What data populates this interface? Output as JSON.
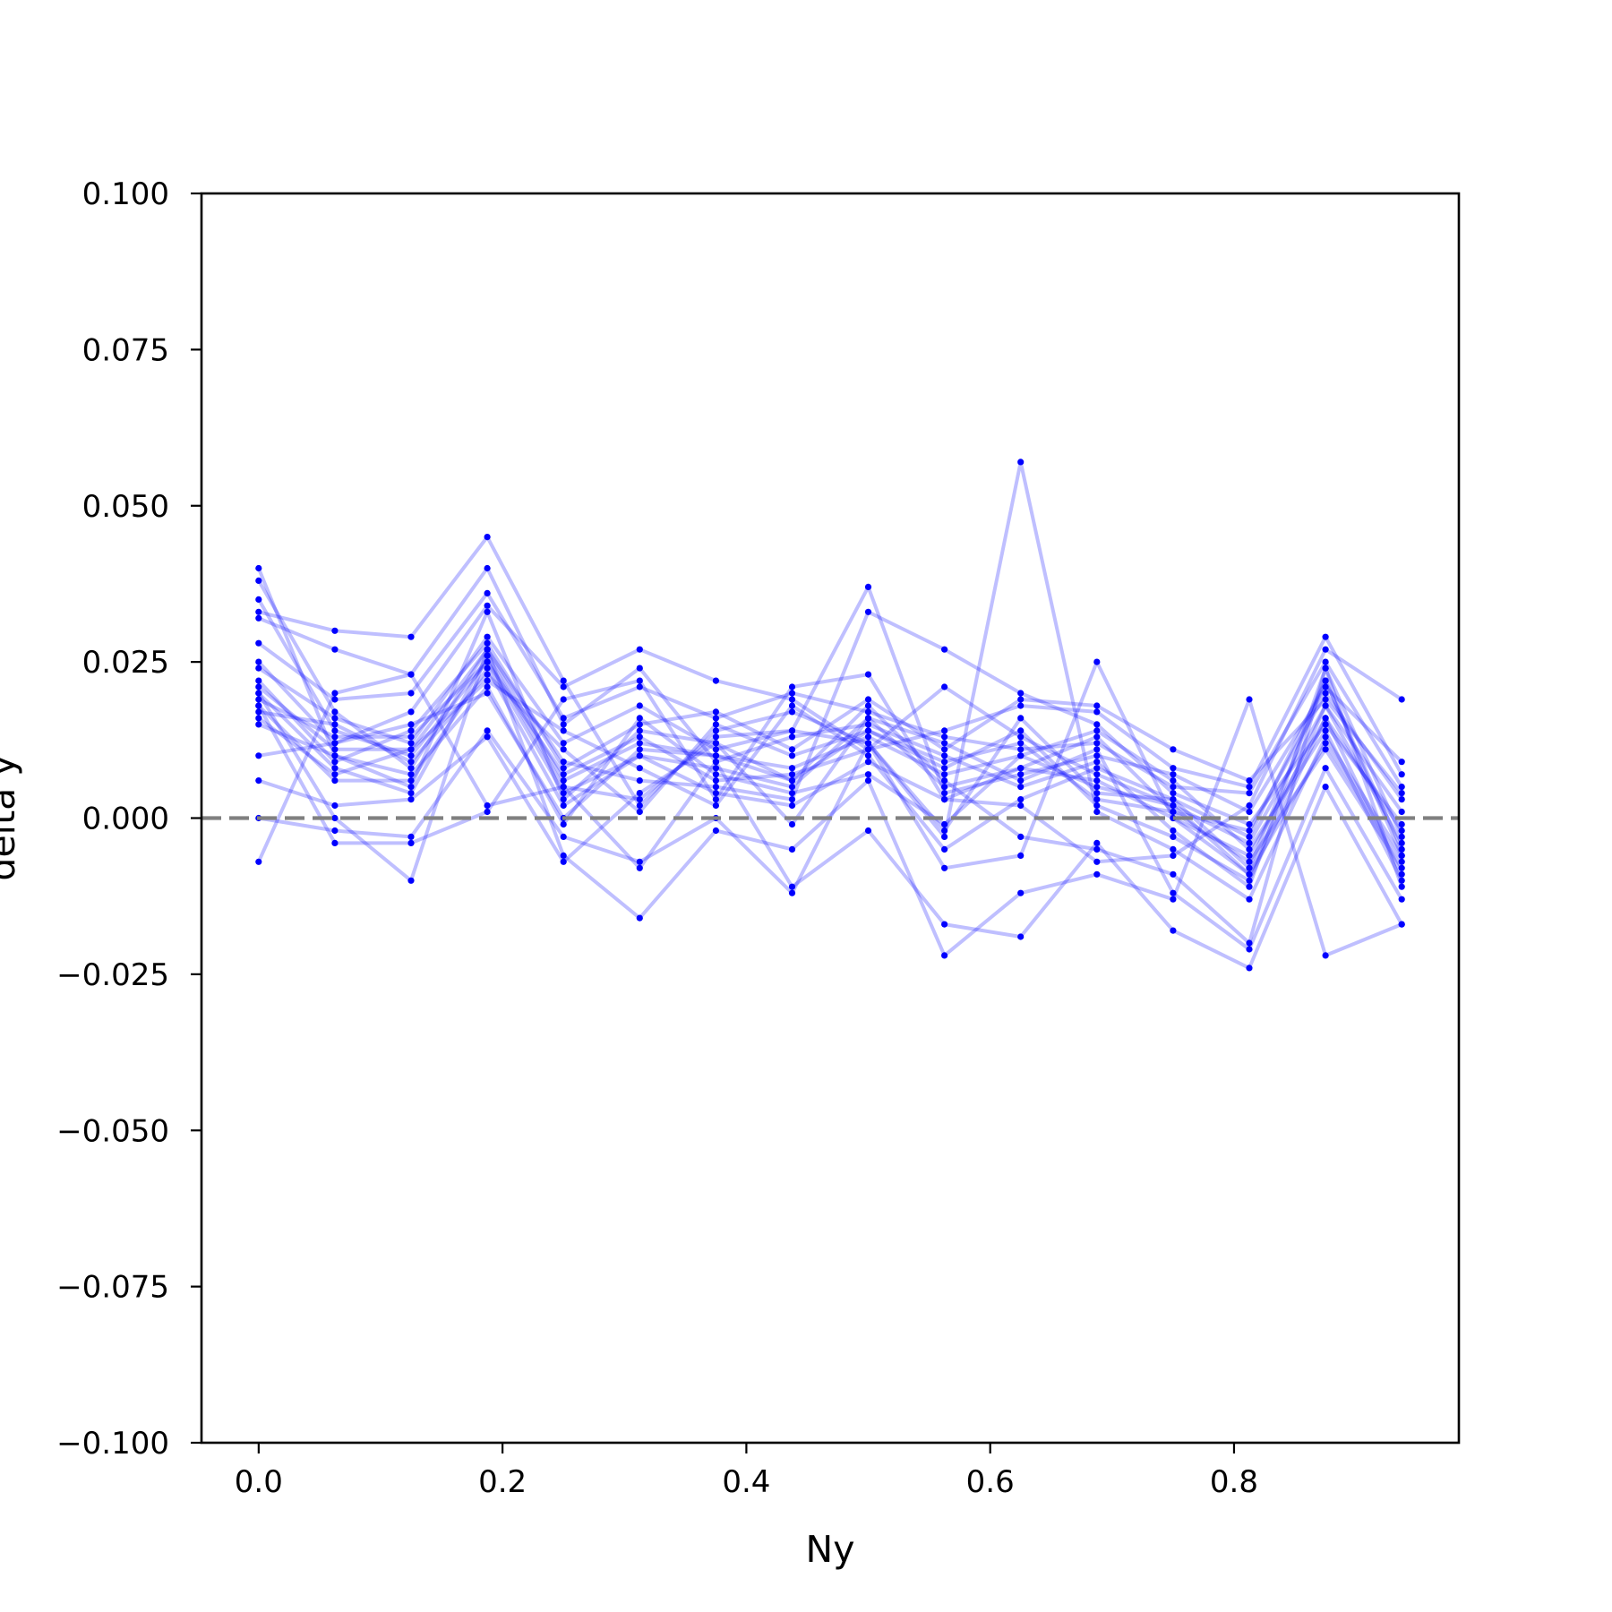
{
  "chart_data": {
    "type": "line",
    "title": "",
    "xlabel": "Ny",
    "ylabel": "delta y",
    "xlim": [
      -0.0469,
      0.9844
    ],
    "ylim": [
      -0.1,
      0.1
    ],
    "grid": false,
    "x": [
      0.0,
      0.0625,
      0.125,
      0.1875,
      0.25,
      0.3125,
      0.375,
      0.4375,
      0.5,
      0.5625,
      0.625,
      0.6875,
      0.75,
      0.8125,
      0.875,
      0.9375
    ],
    "xticks": [
      "0.0",
      "0.2",
      "0.4",
      "0.6",
      "0.8"
    ],
    "yticks": [
      "0.100",
      "0.075",
      "0.050",
      "0.025",
      "0.000",
      "−0.025",
      "−0.050",
      "−0.075",
      "−0.100"
    ],
    "line_color": "#0000ff",
    "reference_line": {
      "y": 0.0,
      "style": "dashed",
      "color": "#808080"
    },
    "series": [
      {
        "values": [
          0.04,
          0.01,
          0.005,
          0.033,
          0.003,
          0.014,
          0.012,
          0.006,
          0.014,
          0.009,
          0.012,
          0.003,
          0.001,
          -0.002,
          0.02,
          0.003
        ]
      },
      {
        "values": [
          0.038,
          0.017,
          0.008,
          0.027,
          0.006,
          0.012,
          0.01,
          0.008,
          0.013,
          0.007,
          0.01,
          0.005,
          0.002,
          -0.004,
          0.018,
          0.001
        ]
      },
      {
        "values": [
          0.035,
          0.014,
          0.01,
          0.025,
          0.004,
          0.01,
          0.008,
          0.005,
          0.016,
          0.005,
          0.008,
          0.006,
          0.0,
          -0.006,
          0.016,
          -0.002
        ]
      },
      {
        "values": [
          0.033,
          0.03,
          0.029,
          0.045,
          0.022,
          0.002,
          0.014,
          0.017,
          0.012,
          -0.002,
          0.016,
          0.004,
          0.003,
          -0.008,
          0.022,
          -0.005
        ]
      },
      {
        "values": [
          0.032,
          0.027,
          0.023,
          0.04,
          0.015,
          0.024,
          0.009,
          0.013,
          0.015,
          0.01,
          0.005,
          0.009,
          -0.002,
          -0.011,
          0.024,
          -0.003
        ]
      },
      {
        "values": [
          0.028,
          0.019,
          0.02,
          0.036,
          0.016,
          0.021,
          0.016,
          0.02,
          0.017,
          0.013,
          0.011,
          0.012,
          0.005,
          0.004,
          0.025,
          0.005
        ]
      },
      {
        "values": [
          0.025,
          0.012,
          0.017,
          0.034,
          0.021,
          0.027,
          0.022,
          0.019,
          0.011,
          0.014,
          0.018,
          0.017,
          0.008,
          0.005,
          0.029,
          0.007
        ]
      },
      {
        "values": [
          0.024,
          0.016,
          0.012,
          0.029,
          0.012,
          0.018,
          0.011,
          0.014,
          0.037,
          0.004,
          0.007,
          0.01,
          0.007,
          0.001,
          0.021,
          0.009
        ]
      },
      {
        "values": [
          0.022,
          0.009,
          0.014,
          0.028,
          0.008,
          0.015,
          0.017,
          0.011,
          0.019,
          0.011,
          0.019,
          0.018,
          0.011,
          0.006,
          0.019,
          0.004
        ]
      },
      {
        "values": [
          0.021,
          0.011,
          0.011,
          0.027,
          0.009,
          0.006,
          0.005,
          0.003,
          0.033,
          0.027,
          0.02,
          0.015,
          0.004,
          -0.001,
          0.015,
          -0.001
        ]
      },
      {
        "values": [
          0.02,
          0.008,
          0.004,
          0.026,
          0.005,
          0.003,
          0.013,
          0.014,
          0.012,
          -0.003,
          0.057,
          0.001,
          -0.005,
          -0.013,
          0.013,
          -0.006
        ]
      },
      {
        "values": [
          0.019,
          0.013,
          0.013,
          0.025,
          0.007,
          0.013,
          0.006,
          0.007,
          0.011,
          0.021,
          0.013,
          0.007,
          0.002,
          -0.009,
          0.018,
          -0.004
        ]
      },
      {
        "values": [
          0.018,
          0.006,
          0.006,
          0.024,
          0.002,
          0.01,
          0.004,
          0.002,
          0.009,
          0.003,
          0.008,
          0.013,
          0.001,
          -0.007,
          0.011,
          -0.008
        ]
      },
      {
        "values": [
          0.017,
          0.015,
          0.009,
          0.023,
          0.011,
          0.001,
          0.015,
          0.01,
          0.014,
          0.008,
          0.014,
          0.002,
          -0.003,
          -0.01,
          0.016,
          -0.009
        ]
      },
      {
        "values": [
          0.016,
          0.007,
          0.011,
          0.022,
          0.014,
          0.008,
          0.002,
          0.018,
          0.01,
          -0.005,
          0.003,
          0.008,
          0.003,
          -0.003,
          0.022,
          -0.006
        ]
      },
      {
        "values": [
          0.015,
          0.01,
          0.007,
          0.021,
          -0.001,
          0.016,
          0.007,
          0.004,
          0.007,
          -0.001,
          0.01,
          0.014,
          0.006,
          -0.005,
          0.014,
          -0.01
        ]
      },
      {
        "values": [
          0.01,
          0.012,
          0.015,
          0.02,
          0.0,
          0.011,
          0.01,
          0.006,
          0.018,
          0.006,
          -0.003,
          -0.005,
          -0.009,
          -0.02,
          0.024,
          -0.011
        ]
      },
      {
        "values": [
          0.006,
          0.002,
          0.003,
          0.013,
          -0.007,
          0.004,
          0.012,
          -0.001,
          0.016,
          0.012,
          0.006,
          0.011,
          -0.012,
          -0.021,
          0.008,
          -0.013
        ]
      },
      {
        "values": [
          0.0,
          -0.002,
          -0.003,
          0.014,
          -0.003,
          -0.007,
          0.0,
          -0.012,
          0.012,
          -0.008,
          -0.006,
          0.025,
          0.0,
          -0.009,
          0.012,
          -0.007
        ]
      },
      {
        "values": [
          -0.007,
          0.02,
          0.023,
          0.002,
          0.005,
          -0.008,
          0.009,
          -0.011,
          -0.002,
          -0.017,
          -0.019,
          -0.004,
          -0.018,
          -0.024,
          0.005,
          -0.017
        ]
      },
      {
        "values": [
          0.018,
          -0.004,
          -0.004,
          0.001,
          0.019,
          0.022,
          0.003,
          0.021,
          0.023,
          0.003,
          0.002,
          -0.007,
          -0.006,
          0.002,
          0.027,
          0.019
        ]
      },
      {
        "values": [
          0.02,
          0.0,
          -0.01,
          0.027,
          -0.006,
          -0.016,
          -0.002,
          -0.005,
          0.006,
          -0.022,
          -0.012,
          -0.009,
          -0.013,
          0.019,
          -0.022,
          -0.017
        ]
      }
    ]
  }
}
